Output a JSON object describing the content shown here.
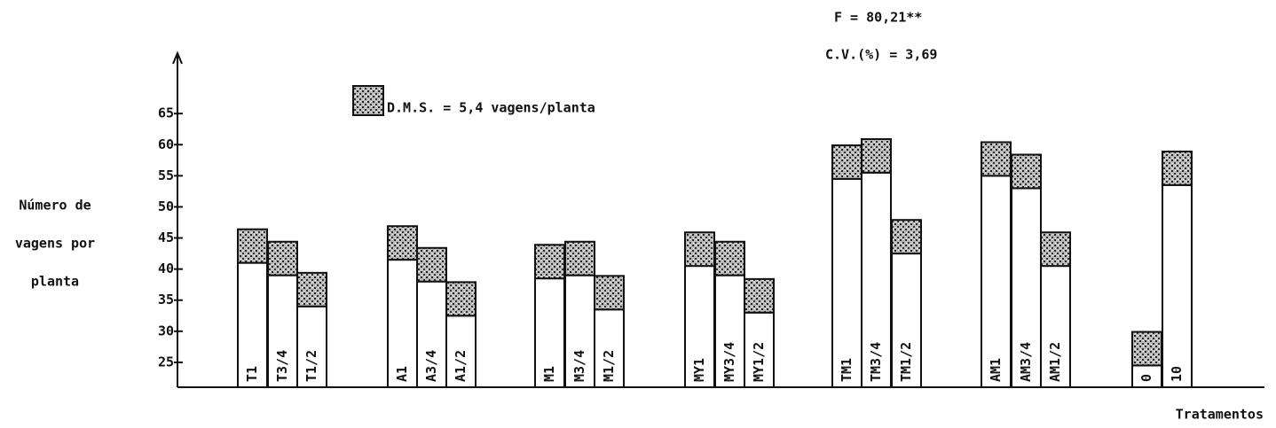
{
  "chart_data": {
    "type": "bar",
    "annotations": [
      "F = 80,21**",
      "C.V.(%) = 3,69"
    ],
    "ylabel": [
      "Número de",
      "vagens por",
      "planta"
    ],
    "xlabel": "Tratamentos",
    "dms": {
      "value": 5.4,
      "label": "D.M.S. = 5,4 vagens/planta"
    },
    "categories": [
      "T1",
      "T3/4",
      "T1/2",
      "A1",
      "A3/4",
      "A1/2",
      "M1",
      "M3/4",
      "M1/2",
      "MY1",
      "MY3/4",
      "MY1/2",
      "TM1",
      "TM3/4",
      "TM1/2",
      "AM1",
      "AM3/4",
      "AM1/2",
      "0",
      "10"
    ],
    "values": [
      41,
      39,
      34,
      41.5,
      38,
      32.5,
      38.5,
      39,
      33.5,
      40.5,
      39,
      33,
      54.5,
      55.5,
      42.5,
      55,
      53,
      40.5,
      24.5,
      53.5
    ],
    "color": "#ffffff",
    "ylim": [
      21,
      74
    ],
    "yticks": [
      25,
      30,
      35,
      40,
      45,
      50,
      55,
      60,
      65
    ]
  }
}
